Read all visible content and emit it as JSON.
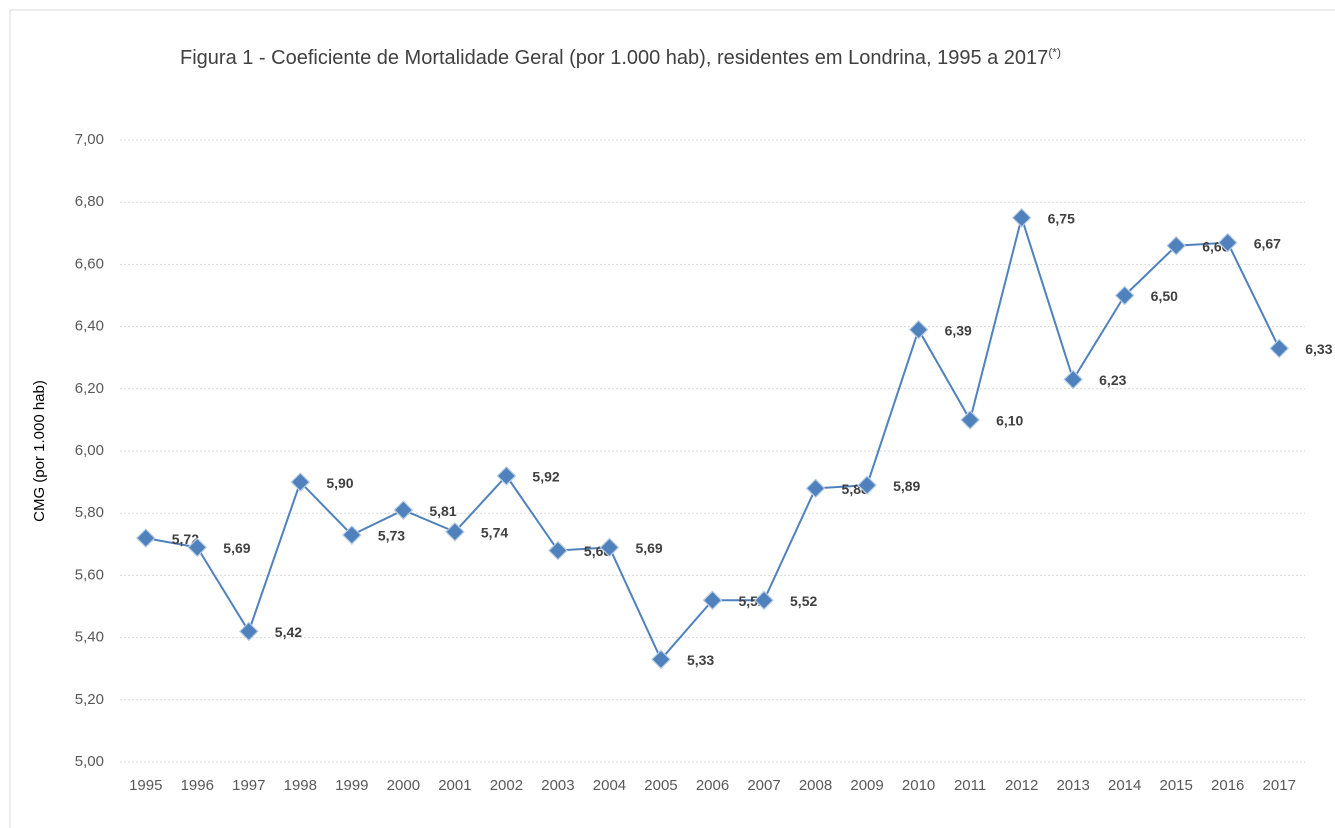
{
  "chart_data": {
    "type": "line",
    "title": "Figura 1 - Coeficiente de Mortalidade Geral (por 1.000 hab), residentes em Londrina, 1995 a 2017",
    "title_note": "(*)",
    "y_label": "CMG (por 1.000 hab)",
    "categories": [
      "1995",
      "1996",
      "1997",
      "1998",
      "1999",
      "2000",
      "2001",
      "2002",
      "2003",
      "2004",
      "2005",
      "2006",
      "2007",
      "2008",
      "2009",
      "2010",
      "2011",
      "2012",
      "2013",
      "2014",
      "2015",
      "2016",
      "2017"
    ],
    "series": [
      {
        "name": "CMG",
        "color": "#4f81bd",
        "values": [
          5.72,
          5.69,
          5.42,
          5.9,
          5.73,
          5.81,
          5.74,
          5.92,
          5.68,
          5.69,
          5.33,
          5.52,
          5.52,
          5.88,
          5.89,
          6.39,
          6.1,
          6.75,
          6.23,
          6.5,
          6.66,
          6.67,
          6.33
        ],
        "value_labels": [
          "5,72",
          "5,69",
          "5,42",
          "5,90",
          "5,73",
          "5,81",
          "5,74",
          "5,92",
          "5,68",
          "5,69",
          "5,33",
          "5,52",
          "5,52",
          "5,88",
          "5,89",
          "6,39",
          "6,10",
          "6,75",
          "6,23",
          "6,50",
          "6,66",
          "6,67",
          "6,33"
        ]
      }
    ],
    "ylim": [
      5.0,
      7.0
    ],
    "yticks": [
      {
        "value": 5.0,
        "label": "5,00"
      },
      {
        "value": 5.2,
        "label": "5,20"
      },
      {
        "value": 5.4,
        "label": "5,40"
      },
      {
        "value": 5.6,
        "label": "5,60"
      },
      {
        "value": 5.8,
        "label": "5,80"
      },
      {
        "value": 6.0,
        "label": "6,00"
      },
      {
        "value": 6.2,
        "label": "6,20"
      },
      {
        "value": 6.4,
        "label": "6,40"
      },
      {
        "value": 6.6,
        "label": "6,60"
      },
      {
        "value": 6.8,
        "label": "6,80"
      },
      {
        "value": 7.0,
        "label": "7,00"
      }
    ],
    "grid": true
  }
}
